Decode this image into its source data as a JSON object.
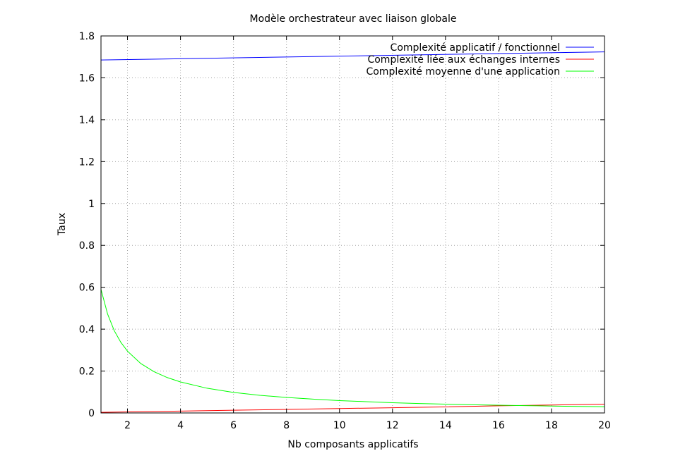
{
  "chart_data": {
    "type": "line",
    "title": "Modèle orchestrateur avec liaison globale",
    "xlabel": "Nb composants applicatifs",
    "ylabel": "Taux",
    "xlim": [
      1,
      20
    ],
    "ylim": [
      0,
      1.8
    ],
    "xticks": [
      2,
      4,
      6,
      8,
      10,
      12,
      14,
      16,
      18,
      20
    ],
    "xtick_labels": [
      "2",
      "4",
      "6",
      "8",
      "10",
      "12",
      "14",
      "16",
      "18",
      "20"
    ],
    "yticks": [
      0,
      0.2,
      0.4,
      0.6,
      0.8,
      1,
      1.2,
      1.4,
      1.6,
      1.8
    ],
    "ytick_labels": [
      "0",
      "0.2",
      "0.4",
      "0.6",
      "0.8",
      "1",
      "1.2",
      "1.4",
      "1.6",
      "1.8"
    ],
    "grid": true,
    "legend_position": "top-right",
    "series": [
      {
        "name": "Complexité applicatif / fonctionnel",
        "color": "#0000ff",
        "x": [
          1,
          20
        ],
        "y": [
          1.685,
          1.724
        ]
      },
      {
        "name": "Complexité liée aux échanges internes",
        "color": "#ff0000",
        "x": [
          1,
          2,
          4,
          6,
          8,
          10,
          12,
          14,
          16,
          18,
          20
        ],
        "y": [
          0.003,
          0.005,
          0.009,
          0.013,
          0.017,
          0.021,
          0.025,
          0.029,
          0.034,
          0.038,
          0.042
        ]
      },
      {
        "name": "Complexité moyenne d'une application",
        "color": "#00ff00",
        "x": [
          1,
          1.25,
          1.5,
          1.75,
          2,
          2.5,
          3,
          3.5,
          4,
          5,
          6,
          7,
          8,
          9,
          10,
          11,
          12,
          13,
          14,
          15,
          16,
          17,
          18,
          19,
          20
        ],
        "y": [
          0.59,
          0.472,
          0.393,
          0.337,
          0.295,
          0.236,
          0.197,
          0.169,
          0.148,
          0.118,
          0.098,
          0.084,
          0.074,
          0.066,
          0.059,
          0.054,
          0.049,
          0.045,
          0.042,
          0.039,
          0.037,
          0.035,
          0.033,
          0.031,
          0.03
        ]
      }
    ]
  }
}
